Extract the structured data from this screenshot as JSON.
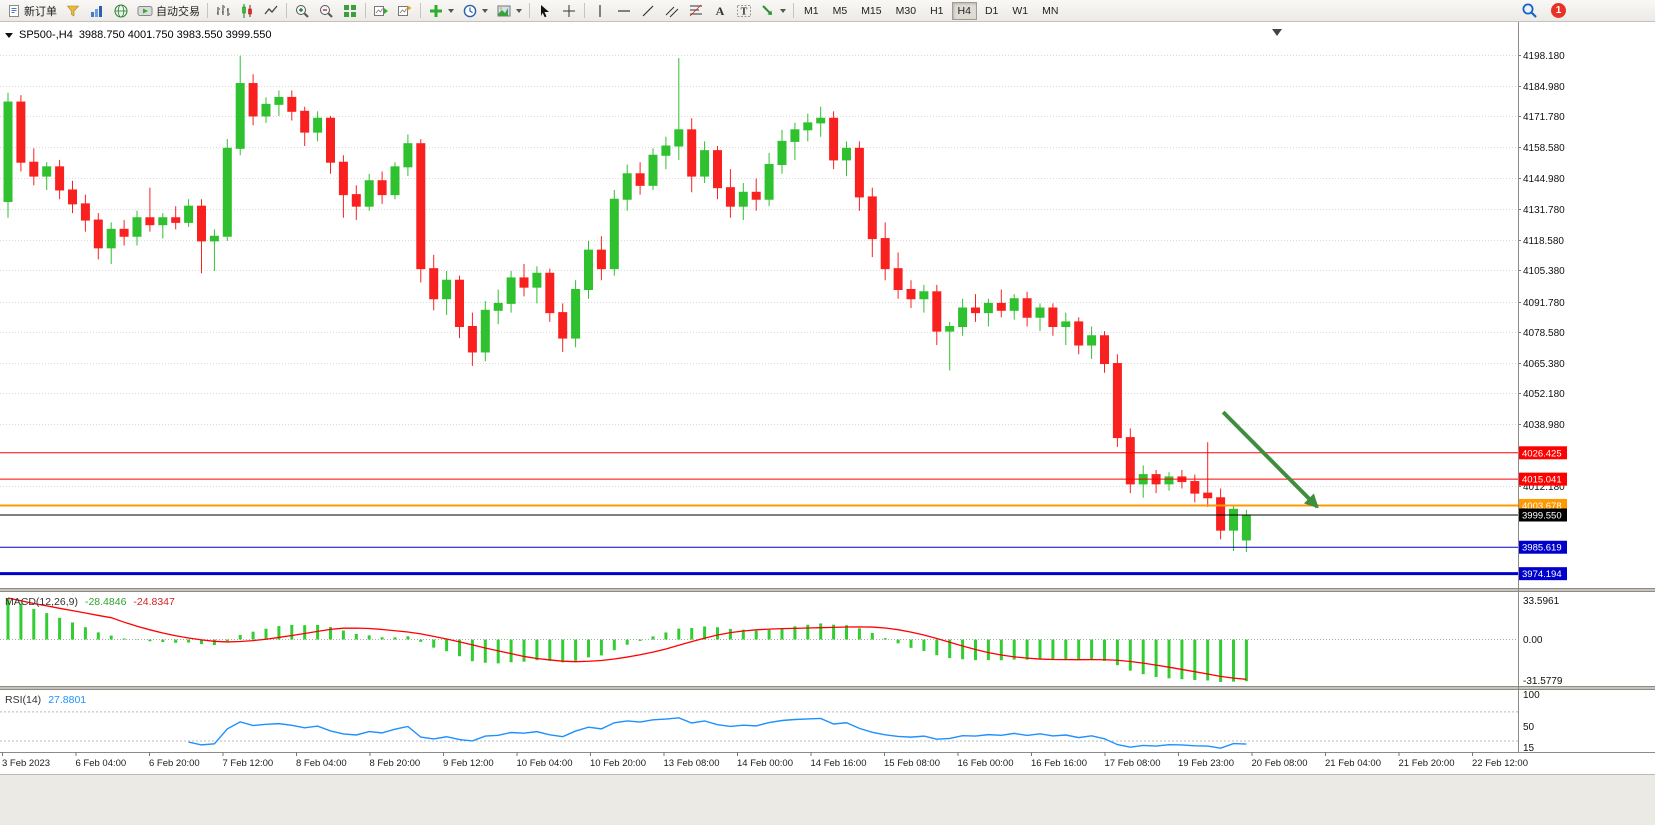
{
  "toolbar": {
    "new_order_label": "新订单",
    "autotrading_label": "自动交易",
    "timeframes": [
      "M1",
      "M5",
      "M15",
      "M30",
      "H1",
      "H4",
      "D1",
      "W1",
      "MN"
    ],
    "active_timeframe": "H4",
    "notification_count": "1",
    "icons": [
      "new-order-icon",
      "profiles-icon",
      "market-watch-icon",
      "navigator-icon",
      "autotrading-icon",
      "bars-chart-icon",
      "candlestick-chart-icon",
      "line-chart-icon",
      "zoom-in-icon",
      "zoom-out-icon",
      "tile-windows-icon",
      "auto-scroll-icon",
      "chart-shift-icon",
      "indicators-icon",
      "periods-icon",
      "templates-icon",
      "cursor-icon",
      "crosshair-icon",
      "vertical-line-icon",
      "horizontal-line-icon",
      "trendline-icon",
      "channel-icon",
      "fibonacci-icon",
      "text-icon",
      "text-label-icon",
      "arrows-icon",
      "search-icon",
      "notification-badge"
    ]
  },
  "chart": {
    "symbol_period": "SP500-,H4",
    "ohlc_line": "3988.750 4001.750 3983.550 3999.550"
  },
  "chart_data": {
    "type": "candlestick",
    "symbol": "SP500-",
    "timeframe": "H4",
    "last_ohlc": {
      "open": 3988.75,
      "high": 4001.75,
      "low": 3983.55,
      "close": 3999.55
    },
    "current_price": "3999.550",
    "price_axis_labels": [
      "4198.180",
      "4184.980",
      "4171.780",
      "4158.580",
      "4144.980",
      "4131.780",
      "4118.580",
      "4105.380",
      "4091.780",
      "4078.580",
      "4065.380",
      "4052.180",
      "4038.980",
      "4012.180"
    ],
    "horizontal_lines": [
      {
        "value": 4026.425,
        "label": "4026.425",
        "color": "#FF0000",
        "width": 1,
        "type": "resistance"
      },
      {
        "value": 4015.041,
        "label": "4015.041",
        "color": "#FF0000",
        "width": 1,
        "type": "resistance"
      },
      {
        "value": 4003.678,
        "label": "4003.678",
        "color": "#FF9900",
        "width": 2,
        "type": "level"
      },
      {
        "value": 3999.55,
        "label": "3999.550",
        "color": "#000000",
        "width": 1,
        "type": "current-price"
      },
      {
        "value": 3985.619,
        "label": "3985.619",
        "color": "#0000CC",
        "width": 1,
        "type": "support"
      },
      {
        "value": 3974.194,
        "label": "3974.194",
        "color": "#0000CC",
        "width": 3,
        "type": "support"
      }
    ],
    "trend_arrow": {
      "from_index": 94.2,
      "from_price": 4044,
      "to_index": 101.5,
      "to_price": 4003,
      "color": "#3E8E3E"
    },
    "time_axis_labels": [
      "3 Feb 2023",
      "6 Feb 04:00",
      "6 Feb 20:00",
      "7 Feb 12:00",
      "8 Feb 04:00",
      "8 Feb 20:00",
      "9 Feb 12:00",
      "10 Feb 04:00",
      "10 Feb 20:00",
      "13 Feb 08:00",
      "14 Feb 00:00",
      "14 Feb 16:00",
      "15 Feb 08:00",
      "16 Feb 00:00",
      "16 Feb 16:00",
      "17 Feb 08:00",
      "19 Feb 23:00",
      "20 Feb 08:00",
      "21 Feb 04:00",
      "21 Feb 20:00",
      "22 Feb 12:00"
    ],
    "candles": [
      [
        4135,
        4182,
        4128,
        4178
      ],
      [
        4178,
        4181,
        4148,
        4152
      ],
      [
        4152,
        4158,
        4142,
        4146
      ],
      [
        4146,
        4152,
        4140,
        4150
      ],
      [
        4150,
        4153,
        4136,
        4140
      ],
      [
        4140,
        4144,
        4130,
        4134
      ],
      [
        4134,
        4138,
        4122,
        4127
      ],
      [
        4127,
        4130,
        4110,
        4115
      ],
      [
        4115,
        4126,
        4108,
        4123
      ],
      [
        4123,
        4127,
        4116,
        4120
      ],
      [
        4120,
        4131,
        4116,
        4128
      ],
      [
        4128,
        4141,
        4122,
        4125
      ],
      [
        4125,
        4130,
        4119,
        4128
      ],
      [
        4128,
        4133,
        4123,
        4126
      ],
      [
        4126,
        4136,
        4124,
        4133
      ],
      [
        4133,
        4136,
        4104,
        4118
      ],
      [
        4118,
        4123,
        4105,
        4120
      ],
      [
        4120,
        4162,
        4118,
        4158
      ],
      [
        4158,
        4198,
        4155,
        4186
      ],
      [
        4186,
        4190,
        4168,
        4172
      ],
      [
        4172,
        4180,
        4169,
        4177
      ],
      [
        4177,
        4183,
        4172,
        4180
      ],
      [
        4180,
        4183,
        4170,
        4174
      ],
      [
        4174,
        4176,
        4159,
        4165
      ],
      [
        4165,
        4174,
        4161,
        4171
      ],
      [
        4171,
        4172,
        4147,
        4152
      ],
      [
        4152,
        4155,
        4128,
        4138
      ],
      [
        4138,
        4142,
        4127,
        4133
      ],
      [
        4133,
        4147,
        4131,
        4144
      ],
      [
        4144,
        4148,
        4134,
        4138
      ],
      [
        4138,
        4152,
        4136,
        4150
      ],
      [
        4150,
        4164,
        4146,
        4160
      ],
      [
        4160,
        4162,
        4100,
        4106
      ],
      [
        4106,
        4112,
        4088,
        4093
      ],
      [
        4093,
        4105,
        4086,
        4101
      ],
      [
        4101,
        4103,
        4076,
        4081
      ],
      [
        4081,
        4087,
        4064,
        4070
      ],
      [
        4070,
        4092,
        4066,
        4088
      ],
      [
        4088,
        4097,
        4082,
        4091
      ],
      [
        4091,
        4105,
        4087,
        4102
      ],
      [
        4102,
        4108,
        4094,
        4098
      ],
      [
        4098,
        4107,
        4091,
        4104
      ],
      [
        4104,
        4106,
        4083,
        4087
      ],
      [
        4087,
        4091,
        4070,
        4076
      ],
      [
        4076,
        4101,
        4072,
        4097
      ],
      [
        4097,
        4118,
        4093,
        4114
      ],
      [
        4114,
        4120,
        4101,
        4106
      ],
      [
        4106,
        4140,
        4103,
        4136
      ],
      [
        4136,
        4151,
        4131,
        4147
      ],
      [
        4147,
        4152,
        4138,
        4142
      ],
      [
        4142,
        4158,
        4140,
        4155
      ],
      [
        4155,
        4163,
        4149,
        4159
      ],
      [
        4159,
        4197,
        4153,
        4166
      ],
      [
        4166,
        4171,
        4139,
        4146
      ],
      [
        4146,
        4161,
        4143,
        4157
      ],
      [
        4157,
        4159,
        4136,
        4141
      ],
      [
        4141,
        4149,
        4128,
        4133
      ],
      [
        4133,
        4143,
        4127,
        4139
      ],
      [
        4139,
        4145,
        4131,
        4136
      ],
      [
        4136,
        4156,
        4133,
        4151
      ],
      [
        4151,
        4166,
        4147,
        4161
      ],
      [
        4161,
        4169,
        4153,
        4166
      ],
      [
        4166,
        4173,
        4161,
        4169
      ],
      [
        4169,
        4176,
        4163,
        4171
      ],
      [
        4171,
        4174,
        4149,
        4153
      ],
      [
        4153,
        4161,
        4146,
        4158
      ],
      [
        4158,
        4161,
        4131,
        4137
      ],
      [
        4137,
        4141,
        4111,
        4119
      ],
      [
        4119,
        4126,
        4101,
        4106
      ],
      [
        4106,
        4113,
        4093,
        4097
      ],
      [
        4097,
        4101,
        4089,
        4093
      ],
      [
        4093,
        4099,
        4087,
        4096
      ],
      [
        4096,
        4099,
        4073,
        4079
      ],
      [
        4079,
        4083,
        4062,
        4081
      ],
      [
        4081,
        4093,
        4077,
        4089
      ],
      [
        4089,
        4095,
        4083,
        4087
      ],
      [
        4087,
        4093,
        4081,
        4091
      ],
      [
        4091,
        4097,
        4085,
        4088
      ],
      [
        4088,
        4095,
        4084,
        4093
      ],
      [
        4093,
        4096,
        4081,
        4085
      ],
      [
        4085,
        4091,
        4079,
        4089
      ],
      [
        4089,
        4091,
        4077,
        4081
      ],
      [
        4081,
        4087,
        4073,
        4083
      ],
      [
        4083,
        4085,
        4069,
        4073
      ],
      [
        4073,
        4081,
        4067,
        4077
      ],
      [
        4077,
        4079,
        4061,
        4065
      ],
      [
        4065,
        4069,
        4029,
        4033
      ],
      [
        4033,
        4037,
        4009,
        4013
      ],
      [
        4013,
        4021,
        4007,
        4017
      ],
      [
        4017,
        4019,
        4009,
        4013
      ],
      [
        4013,
        4018,
        4010,
        4016
      ],
      [
        4016,
        4019,
        4011,
        4014
      ],
      [
        4014,
        4017,
        4005,
        4009
      ],
      [
        4009,
        4031,
        4003,
        4007
      ],
      [
        4007,
        4011,
        3989,
        3993
      ],
      [
        3993,
        4004,
        3984,
        4002
      ],
      [
        3988.75,
        4001.75,
        3983.55,
        3999.55
      ]
    ],
    "indicators": {
      "macd": {
        "label": "MACD(12,26,9)",
        "value_main": "-28.4846",
        "value_signal": "-24.8347",
        "axis_labels": [
          "33.5961",
          "0.00",
          "-31.5779"
        ],
        "histogram_color": "#32CD32",
        "signal_color": "#FF0000"
      },
      "rsi": {
        "label": "RSI(14)",
        "value": "27.8801",
        "axis_labels": [
          "100",
          "50",
          "15"
        ],
        "levels": [
          70,
          30
        ],
        "line_color": "#1E90FF"
      }
    },
    "colors": {
      "up": "#2FC12F",
      "down": "#F92020",
      "grid": "#DADADA",
      "background": "#FFFFFF"
    }
  }
}
